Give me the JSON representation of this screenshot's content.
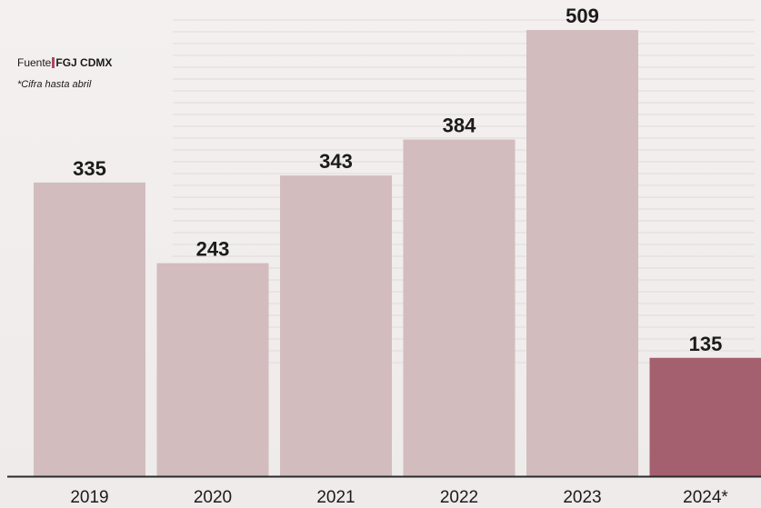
{
  "chart_data": {
    "type": "bar",
    "categories": [
      "2019",
      "2020",
      "2021",
      "2022",
      "2023",
      "2024*"
    ],
    "values": [
      335,
      243,
      343,
      384,
      509,
      135
    ],
    "value_labels": [
      "335",
      "243",
      "343",
      "384",
      "509",
      "135"
    ],
    "ylim": [
      0,
      509
    ],
    "grid": false,
    "colors": {
      "bar": "#d2bcbe",
      "highlight_bar": "#a4606e",
      "highlight_index": 5,
      "baseline": "#2a2a2a"
    }
  },
  "source": {
    "prefix": "Fuente",
    "org": "FGJ CDMX"
  },
  "note": "*Cifra hasta abril"
}
